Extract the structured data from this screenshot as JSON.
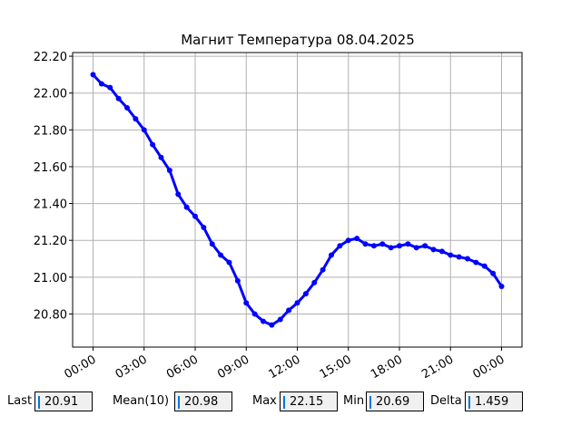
{
  "chart_data": {
    "type": "line",
    "title": "Магнит Температура 08.04.2025",
    "x": [
      0,
      0.5,
      1,
      1.5,
      2,
      2.5,
      3,
      3.5,
      4,
      4.5,
      5,
      5.5,
      6,
      6.5,
      7,
      7.5,
      8,
      8.5,
      9,
      9.5,
      10,
      10.5,
      11,
      11.5,
      12,
      12.5,
      13,
      13.5,
      14,
      14.5,
      15,
      15.5,
      16,
      16.5,
      17,
      17.5,
      18,
      18.5,
      19,
      19.5,
      20,
      20.5,
      21,
      21.5,
      22,
      22.5,
      23,
      23.5,
      24
    ],
    "series": [
      {
        "color": "#0000ff",
        "values": [
          22.1,
          22.05,
          22.03,
          21.97,
          21.92,
          21.86,
          21.8,
          21.72,
          21.65,
          21.58,
          21.45,
          21.38,
          21.33,
          21.27,
          21.18,
          21.12,
          21.08,
          20.98,
          20.86,
          20.8,
          20.76,
          20.74,
          20.77,
          20.82,
          20.86,
          20.91,
          20.97,
          21.04,
          21.12,
          21.17,
          21.2,
          21.21,
          21.18,
          21.17,
          21.18,
          21.16,
          21.17,
          21.18,
          21.16,
          21.17,
          21.15,
          21.14,
          21.12,
          21.11,
          21.1,
          21.08,
          21.06,
          21.02,
          20.95
        ]
      }
    ],
    "xlim": [
      -1.2,
      25.2
    ],
    "xticks": [
      {
        "value": 0,
        "label": "00:00"
      },
      {
        "value": 3,
        "label": "03:00"
      },
      {
        "value": 6,
        "label": "06:00"
      },
      {
        "value": 9,
        "label": "09:00"
      },
      {
        "value": 12,
        "label": "12:00"
      },
      {
        "value": 15,
        "label": "15:00"
      },
      {
        "value": 18,
        "label": "18:00"
      },
      {
        "value": 21,
        "label": "21:00"
      },
      {
        "value": 24,
        "label": "00:00"
      }
    ],
    "ylim": [
      20.62,
      22.22
    ],
    "yticks": [
      {
        "value": 20.8,
        "label": "20.80"
      },
      {
        "value": 21.0,
        "label": "21.00"
      },
      {
        "value": 21.2,
        "label": "21.20"
      },
      {
        "value": 21.4,
        "label": "21.40"
      },
      {
        "value": 21.6,
        "label": "21.60"
      },
      {
        "value": 21.8,
        "label": "21.80"
      },
      {
        "value": 22.0,
        "label": "22.00"
      },
      {
        "value": 22.2,
        "label": "22.20"
      }
    ],
    "grid": true
  },
  "fields": [
    {
      "label": "Last",
      "value": 20.91
    },
    {
      "label": "Mean(10)",
      "value": 20.98
    },
    {
      "label": "Max",
      "value": 22.15
    },
    {
      "label": "Min",
      "value": 20.69
    },
    {
      "label": "Delta",
      "value": 1.459
    }
  ]
}
